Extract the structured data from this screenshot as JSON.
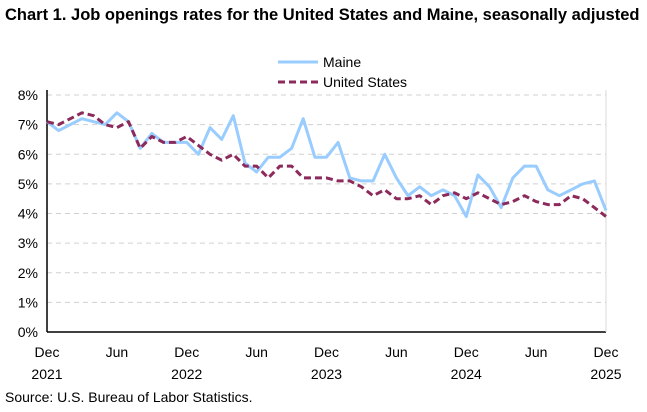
{
  "chart_data": {
    "type": "line",
    "title": "Chart 1. Job openings rates for the United States and Maine, seasonally adjusted",
    "xlabel": "",
    "ylabel": "",
    "x_start": "Dec 2021",
    "x_end": "Dec 2025",
    "x_ticks": [
      {
        "month": "Dec",
        "year": "2021",
        "index": 0
      },
      {
        "month": "Jun",
        "year": "",
        "index": 6
      },
      {
        "month": "Dec",
        "year": "2022",
        "index": 12
      },
      {
        "month": "Jun",
        "year": "",
        "index": 18
      },
      {
        "month": "Dec",
        "year": "2023",
        "index": 24
      },
      {
        "month": "Jun",
        "year": "",
        "index": 30
      },
      {
        "month": "Dec",
        "year": "2024",
        "index": 36
      },
      {
        "month": "Jun",
        "year": "",
        "index": 42
      },
      {
        "month": "Dec",
        "year": "2025",
        "index": 48
      }
    ],
    "y_ticks": [
      "0%",
      "1%",
      "2%",
      "3%",
      "4%",
      "5%",
      "6%",
      "7%",
      "8%"
    ],
    "ylim": [
      0,
      8
    ],
    "grid": "horizontal dashed",
    "legend": "top-center",
    "series": [
      {
        "name": "Maine",
        "color": "#99ccff",
        "style": "solid",
        "values": [
          7.1,
          6.8,
          7.0,
          7.2,
          7.1,
          7.0,
          7.4,
          7.1,
          6.2,
          6.7,
          6.4,
          6.4,
          6.4,
          6.0,
          6.9,
          6.5,
          7.3,
          5.7,
          5.4,
          5.9,
          5.9,
          6.2,
          7.2,
          5.9,
          5.9,
          6.4,
          5.2,
          5.1,
          5.1,
          6.0,
          5.2,
          4.6,
          4.9,
          4.6,
          4.8,
          4.6,
          3.9,
          5.3,
          4.9,
          4.2,
          5.2,
          5.6,
          5.6,
          4.8,
          4.6,
          4.8,
          5.0,
          5.1,
          4.1
        ]
      },
      {
        "name": "United States",
        "color": "#8b2a5b",
        "style": "dashed",
        "values": [
          7.1,
          7.0,
          7.2,
          7.4,
          7.3,
          7.0,
          6.9,
          7.1,
          6.2,
          6.6,
          6.4,
          6.4,
          6.6,
          6.3,
          6.0,
          5.8,
          6.0,
          5.6,
          5.6,
          5.2,
          5.6,
          5.6,
          5.2,
          5.2,
          5.2,
          5.1,
          5.1,
          4.9,
          4.6,
          4.8,
          4.5,
          4.5,
          4.6,
          4.3,
          4.6,
          4.7,
          4.5,
          4.7,
          4.5,
          4.3,
          4.4,
          4.6,
          4.4,
          4.3,
          4.3,
          4.6,
          4.5,
          4.2,
          3.9
        ]
      }
    ]
  },
  "source": "Source: U.S. Bureau of Labor Statistics."
}
